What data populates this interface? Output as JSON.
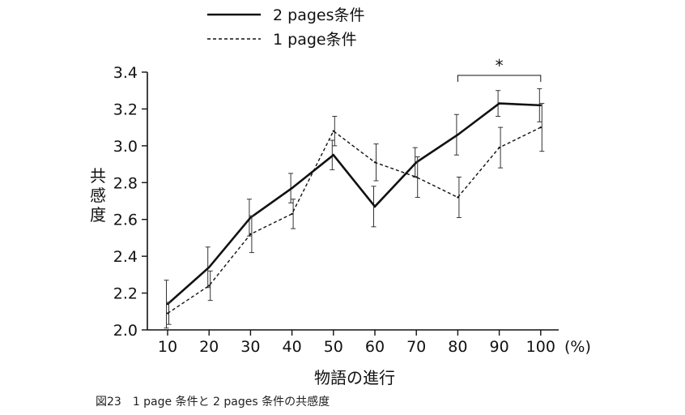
{
  "chart_data": {
    "type": "line",
    "x": [
      10,
      20,
      30,
      40,
      50,
      60,
      70,
      80,
      90,
      100
    ],
    "x_tick_labels": [
      "10",
      "20",
      "30",
      "40",
      "50",
      "60",
      "70",
      "80",
      "90",
      "100"
    ],
    "x_unit": "(%)",
    "xlabel": "物語の進行",
    "ylabel": "共感度",
    "ylim": [
      2.0,
      3.4
    ],
    "y_ticks": [
      2.0,
      2.2,
      2.4,
      2.6,
      2.8,
      3.0,
      3.2,
      3.4
    ],
    "y_tick_labels": [
      "2.0",
      "2.2",
      "2.4",
      "2.6",
      "2.8",
      "3.0",
      "3.2",
      "3.4"
    ],
    "series": [
      {
        "name": "2 pages条件",
        "style": "solid",
        "values": [
          2.14,
          2.34,
          2.61,
          2.77,
          2.95,
          2.67,
          2.91,
          3.06,
          3.23,
          3.22
        ],
        "errors": [
          0.13,
          0.11,
          0.1,
          0.08,
          0.08,
          0.11,
          0.08,
          0.11,
          0.07,
          0.09
        ]
      },
      {
        "name": "1 page条件",
        "style": "dashed",
        "values": [
          2.09,
          2.24,
          2.52,
          2.63,
          3.08,
          2.91,
          2.83,
          2.72,
          2.99,
          3.1
        ],
        "errors": [
          0.06,
          0.08,
          0.1,
          0.08,
          0.08,
          0.1,
          0.11,
          0.11,
          0.11,
          0.13
        ]
      }
    ],
    "significance": {
      "label": "*",
      "from_x": 80,
      "to_x": 100
    },
    "legend_position": "top"
  },
  "caption": "図23　1 page 条件と 2 pages 条件の共感度",
  "colors": {
    "line": "#111111",
    "axis": "#111111"
  }
}
